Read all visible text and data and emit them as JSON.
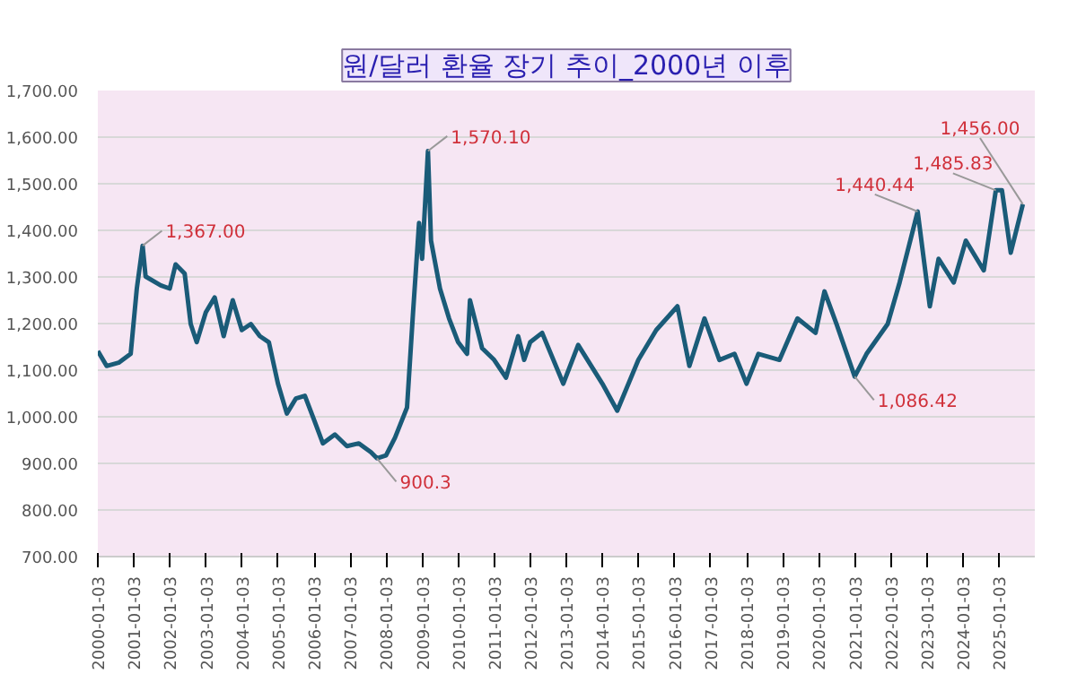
{
  "chart_data": {
    "type": "line",
    "title": "원/달러 환율 장기 추이_2000년 이후",
    "x": [
      "2000-01-04",
      "2000-04",
      "2000-08",
      "2000-12",
      "2001-02",
      "2001-04",
      "2001-05",
      "2001-10",
      "2002-01",
      "2002-03",
      "2002-06",
      "2002-08",
      "2002-10",
      "2003-01",
      "2003-04",
      "2003-07",
      "2003-10",
      "2004-01",
      "2004-04",
      "2004-07",
      "2004-10",
      "2005-01",
      "2005-04",
      "2005-07",
      "2005-10",
      "2006-01",
      "2006-04",
      "2006-08",
      "2006-12",
      "2007-04",
      "2007-08",
      "2007-10",
      "2008-01",
      "2008-04",
      "2008-08",
      "2008-10",
      "2008-12",
      "2009-01",
      "2009-03",
      "2009-04",
      "2009-07",
      "2009-10",
      "2010-01",
      "2010-04",
      "2010-05",
      "2010-09",
      "2011-01",
      "2011-05",
      "2011-09",
      "2011-11",
      "2012-01",
      "2012-05",
      "2012-12",
      "2013-05",
      "2014-01",
      "2014-06",
      "2015-01",
      "2015-07",
      "2016-02",
      "2016-06",
      "2016-11",
      "2017-04",
      "2017-09",
      "2018-01",
      "2018-05",
      "2018-12",
      "2019-06",
      "2019-12",
      "2020-03",
      "2020-07",
      "2021-01",
      "2021-05",
      "2021-12",
      "2022-04",
      "2022-10",
      "2023-02",
      "2023-05",
      "2023-10",
      "2024-02",
      "2024-08",
      "2024-12",
      "2025-02",
      "2025-05",
      "2025-09"
    ],
    "series": [
      {
        "color": "#1a5b78",
        "values": [
          1141,
          1109,
          1116,
          1135,
          1275,
          1367,
          1301,
          1282,
          1275,
          1327,
          1307,
          1199,
          1160,
          1224,
          1256,
          1173,
          1250,
          1186,
          1199,
          1173,
          1160,
          1071,
          1007,
          1039,
          1045,
          994,
          943,
          962,
          937,
          943,
          924,
          911,
          917,
          955,
          1020,
          1224,
          1416,
          1339,
          1570.1,
          1378,
          1275,
          1211,
          1160,
          1135,
          1250,
          1147,
          1122,
          1084,
          1173,
          1122,
          1160,
          1180,
          1071,
          1154,
          1071,
          1013,
          1122,
          1186,
          1237,
          1109,
          1211,
          1122,
          1135,
          1071,
          1135,
          1122,
          1211,
          1180,
          1269,
          1199,
          1086.42,
          1135,
          1199,
          1288,
          1440.44,
          1237,
          1339,
          1288,
          1378,
          1314,
          1485.83,
          1486,
          1352,
          1456
        ]
      }
    ],
    "xlim": [
      "2000-01-03",
      "2025-12-31"
    ],
    "xticks": [
      "2000-01-03",
      "2001-01-03",
      "2002-01-03",
      "2003-01-03",
      "2004-01-03",
      "2005-01-03",
      "2006-01-03",
      "2007-01-03",
      "2008-01-03",
      "2009-01-03",
      "2010-01-03",
      "2011-01-03",
      "2012-01-03",
      "2013-01-03",
      "2014-01-03",
      "2015-01-03",
      "2016-01-03",
      "2017-01-03",
      "2018-01-03",
      "2019-01-03",
      "2020-01-03",
      "2021-01-03",
      "2022-01-03",
      "2023-01-03",
      "2024-01-03",
      "2025-01-03"
    ],
    "ylim": [
      700,
      1700
    ],
    "yticks": [
      {
        "value": 700,
        "label": "700.00"
      },
      {
        "value": 800,
        "label": "800.00"
      },
      {
        "value": 900,
        "label": "900.00"
      },
      {
        "value": 1000,
        "label": "1,000.00"
      },
      {
        "value": 1100,
        "label": "1,100.00"
      },
      {
        "value": 1200,
        "label": "1,200.00"
      },
      {
        "value": 1300,
        "label": "1,300.00"
      },
      {
        "value": 1400,
        "label": "1,400.00"
      },
      {
        "value": 1500,
        "label": "1,500.00"
      },
      {
        "value": 1600,
        "label": "1,600.00"
      },
      {
        "value": 1700,
        "label": "1,700.00"
      }
    ],
    "annotations": [
      {
        "text": "1,367.00",
        "x": "2001-04",
        "y": 1367
      },
      {
        "text": "900.3",
        "x": "2007-10",
        "y": 911
      },
      {
        "text": "1,570.10",
        "x": "2009-03",
        "y": 1570.1
      },
      {
        "text": "1,086.42",
        "x": "2021-01",
        "y": 1086.42
      },
      {
        "text": "1,440.44",
        "x": "2022-10",
        "y": 1440.44
      },
      {
        "text": "1,485.83",
        "x": "2024-12",
        "y": 1485.83
      },
      {
        "text": "1,456.00",
        "x": "2025-09",
        "y": 1456
      }
    ],
    "grid": "y",
    "marker": "none",
    "line_style": "solid"
  }
}
